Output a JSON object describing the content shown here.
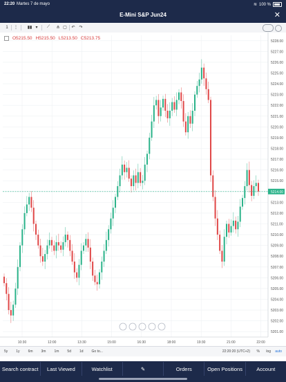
{
  "status": {
    "time": "22:20",
    "date": "Martes 7 de mayo",
    "battery": "100 %"
  },
  "header": {
    "title": "E-Mini S&P Jun24",
    "close_label": "✕"
  },
  "toolbar": {
    "interval": "1",
    "more": "⋮",
    "chart_type": "▮▮",
    "type_arrow": "▾",
    "draw": "⟋",
    "indicators": "⋔",
    "download": "⤓",
    "save": "▢",
    "undo": "↶",
    "redo": "↷"
  },
  "ohlc": {
    "open": "O5215.50",
    "high": "H5215.50",
    "low": "L5213.50",
    "close": "C5213.75"
  },
  "chart_data": {
    "type": "candlestick",
    "ylim": [
      5200.5,
      5228.5
    ],
    "y_ticks": [
      5201,
      5202,
      5203,
      5204,
      5205,
      5206,
      5207,
      5208,
      5209,
      5210,
      5211,
      5212,
      5213,
      5214,
      5215,
      5216,
      5217,
      5218,
      5219,
      5220,
      5221,
      5222,
      5223,
      5224,
      5225,
      5226,
      5227,
      5228
    ],
    "x_ticks": [
      "10:30",
      "12:00",
      "13:30",
      "15:00",
      "16:30",
      "18:00",
      "19:30",
      "21:00",
      "22:00"
    ],
    "last_price": 5214.0,
    "up_color": "#2bb38a",
    "down_color": "#e04848",
    "close_series": [
      5205.5,
      5204.5,
      5203,
      5202.5,
      5203.5,
      5205,
      5207,
      5209,
      5210.5,
      5212,
      5212.8,
      5213.5,
      5212.5,
      5211,
      5210,
      5209,
      5208,
      5207.5,
      5208.2,
      5209,
      5209.5,
      5209,
      5208.5,
      5209.3,
      5209,
      5208.6,
      5209.3,
      5210,
      5209.5,
      5208.5,
      5207.5,
      5206.5,
      5206,
      5207.2,
      5208.5,
      5209,
      5209.6,
      5208.8,
      5207.5,
      5206.2,
      5205.6,
      5205.4,
      5206.5,
      5207.5,
      5208.5,
      5209.5,
      5210.5,
      5211.5,
      5212.5,
      5213.5,
      5214.5,
      5215.5,
      5216.5,
      5215.8,
      5216.2,
      5215.2,
      5214.5,
      5215.5,
      5214.8,
      5215.8,
      5214.8,
      5215,
      5216.5,
      5217.5,
      5219,
      5220.5,
      5222,
      5222.5,
      5221,
      5221.8,
      5222.6,
      5221.5,
      5220.8,
      5221.5,
      5222.3,
      5221.6,
      5222.5,
      5223.2,
      5222.4,
      5220.5,
      5219.5,
      5221,
      5220.3,
      5221.5,
      5223,
      5223.8,
      5224.4,
      5225.5,
      5224.5,
      5223.5,
      5222.5,
      5215.5,
      5213.5,
      5211.5,
      5210,
      5208.5,
      5207.5,
      5209.8,
      5211,
      5210.2,
      5210.8,
      5211.3,
      5210.5,
      5211.2,
      5212.6,
      5213.4,
      5214.5,
      5216,
      5214.6,
      5213.6,
      5214.5,
      5214.8,
      5214
    ]
  },
  "bottom": {
    "periods": [
      "5y",
      "1y",
      "6m",
      "3m",
      "1m",
      "5d",
      "1d",
      "Go to..."
    ],
    "clock": "22:20:20 (UTC+2)",
    "pct": "%",
    "log": "log",
    "auto": "auto"
  },
  "nav": {
    "items": [
      "Search contract",
      "Last Viewed",
      "Watchlist",
      "✎",
      "Orders",
      "Open Positions",
      "Account"
    ]
  }
}
